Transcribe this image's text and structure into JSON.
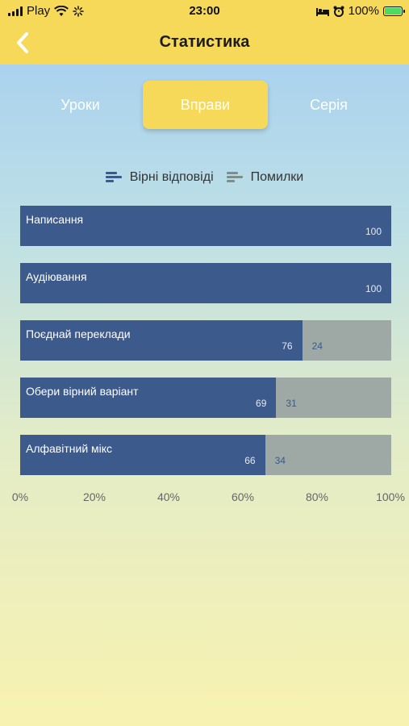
{
  "status_bar": {
    "carrier": "Play",
    "time": "23:00",
    "battery": "100%"
  },
  "header": {
    "title": "Статистика"
  },
  "tabs": [
    {
      "label": "Уроки",
      "active": false
    },
    {
      "label": "Вправи",
      "active": true
    },
    {
      "label": "Серія",
      "active": false
    }
  ],
  "colors": {
    "accent": "#f7d95a",
    "correct": "#3c5a8c",
    "error": "#9ea8a4"
  },
  "chart_data": {
    "type": "bar",
    "orientation": "horizontal",
    "stacked": true,
    "categories": [
      "Написання",
      "Аудіювання",
      "Поєднай переклади",
      "Обери вірний варіант",
      "Алфавітний мікс"
    ],
    "series": [
      {
        "name": "Вірні відповіді",
        "values": [
          100,
          100,
          76,
          69,
          66
        ]
      },
      {
        "name": "Помилки",
        "values": [
          0,
          0,
          24,
          31,
          34
        ]
      }
    ],
    "x_ticks": [
      "0%",
      "20%",
      "40%",
      "60%",
      "80%",
      "100%"
    ],
    "xlim": [
      0,
      100
    ],
    "legend": "top-center",
    "grid": false
  }
}
